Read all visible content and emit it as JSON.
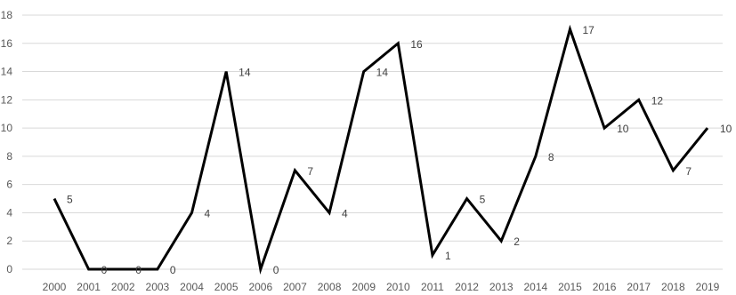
{
  "chart_data": {
    "type": "line",
    "title": "",
    "xlabel": "",
    "ylabel": "",
    "grid": true,
    "ylim": [
      0,
      18
    ],
    "y_ticks": [
      0,
      2,
      4,
      6,
      8,
      10,
      12,
      14,
      16,
      18
    ],
    "categories": [
      "2000",
      "2001",
      "2002",
      "2003",
      "2004",
      "2005",
      "2006",
      "2007",
      "2008",
      "2009",
      "2010",
      "2011",
      "2012",
      "2013",
      "2014",
      "2015",
      "2016",
      "2017",
      "2018",
      "2019"
    ],
    "series": [
      {
        "values": [
          5,
          0,
          0,
          0,
          4,
          14,
          0,
          7,
          4,
          14,
          16,
          1,
          5,
          2,
          8,
          17,
          10,
          12,
          7,
          10
        ]
      }
    ],
    "data_labels": true,
    "colors": {
      "line": "#000000",
      "grid": "#d9d9d9",
      "text": "#595959"
    }
  }
}
